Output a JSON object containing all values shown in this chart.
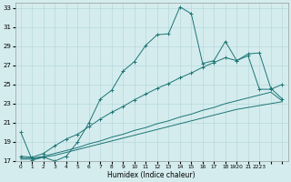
{
  "xlabel": "Humidex (Indice chaleur)",
  "background_color": "#d4ecee",
  "grid_color": "#b8d8dc",
  "line_color": "#1e7575",
  "xlim": [
    -0.5,
    23.5
  ],
  "ylim": [
    17,
    33.5
  ],
  "yticks": [
    17,
    19,
    21,
    23,
    25,
    27,
    29,
    31,
    33
  ],
  "xtick_positions": [
    0,
    1,
    2,
    3,
    4,
    5,
    6,
    7,
    8,
    9,
    10,
    11,
    12,
    13,
    14,
    15,
    16,
    17,
    18,
    19,
    20,
    21,
    22,
    23
  ],
  "xtick_labels": [
    "0",
    "1",
    "2",
    "3",
    "4",
    "5",
    "6",
    "7",
    "8",
    "9",
    "10",
    "11",
    "12",
    "13",
    "14",
    "15",
    "16",
    "17",
    "18",
    "1920",
    "21",
    "2223",
    "",
    ""
  ],
  "lines": [
    {
      "x": [
        0,
        1,
        2,
        3,
        4,
        5,
        6,
        7,
        8,
        9,
        10,
        11,
        12,
        13,
        14,
        15,
        16,
        17,
        18,
        19,
        20,
        21,
        22,
        23
      ],
      "y": [
        20.0,
        17.1,
        17.4,
        17.0,
        17.5,
        19.0,
        21.0,
        23.5,
        24.4,
        26.4,
        27.4,
        29.1,
        30.2,
        30.3,
        33.1,
        32.4,
        27.2,
        27.5,
        29.5,
        27.5,
        28.0,
        24.5,
        24.5,
        25.0
      ],
      "marker": true
    },
    {
      "x": [
        0,
        1,
        2,
        3,
        4,
        5,
        6,
        7,
        8,
        9,
        10,
        11,
        12,
        13,
        14,
        15,
        16,
        17,
        18,
        19,
        20,
        21,
        22,
        23
      ],
      "y": [
        17.5,
        17.4,
        17.8,
        18.6,
        19.3,
        19.8,
        20.6,
        21.4,
        22.1,
        22.7,
        23.4,
        24.0,
        24.6,
        25.1,
        25.7,
        26.2,
        26.8,
        27.3,
        27.8,
        27.5,
        28.2,
        28.3,
        24.6,
        23.5
      ],
      "marker": true
    },
    {
      "x": [
        0,
        1,
        2,
        3,
        4,
        5,
        6,
        7,
        8,
        9,
        10,
        11,
        12,
        13,
        14,
        15,
        16,
        17,
        18,
        19,
        20,
        21,
        22,
        23
      ],
      "y": [
        17.3,
        17.3,
        17.5,
        17.8,
        18.1,
        18.4,
        18.8,
        19.1,
        19.5,
        19.8,
        20.2,
        20.5,
        20.9,
        21.2,
        21.6,
        21.9,
        22.3,
        22.6,
        23.0,
        23.3,
        23.6,
        23.9,
        24.2,
        23.3
      ],
      "marker": false
    },
    {
      "x": [
        0,
        1,
        2,
        3,
        4,
        5,
        6,
        7,
        8,
        9,
        10,
        11,
        12,
        13,
        14,
        15,
        16,
        17,
        18,
        19,
        20,
        21,
        22,
        23
      ],
      "y": [
        17.2,
        17.2,
        17.4,
        17.6,
        17.9,
        18.2,
        18.5,
        18.8,
        19.1,
        19.4,
        19.7,
        20.0,
        20.3,
        20.6,
        20.9,
        21.2,
        21.5,
        21.8,
        22.1,
        22.4,
        22.6,
        22.8,
        23.0,
        23.2
      ],
      "marker": false
    }
  ]
}
